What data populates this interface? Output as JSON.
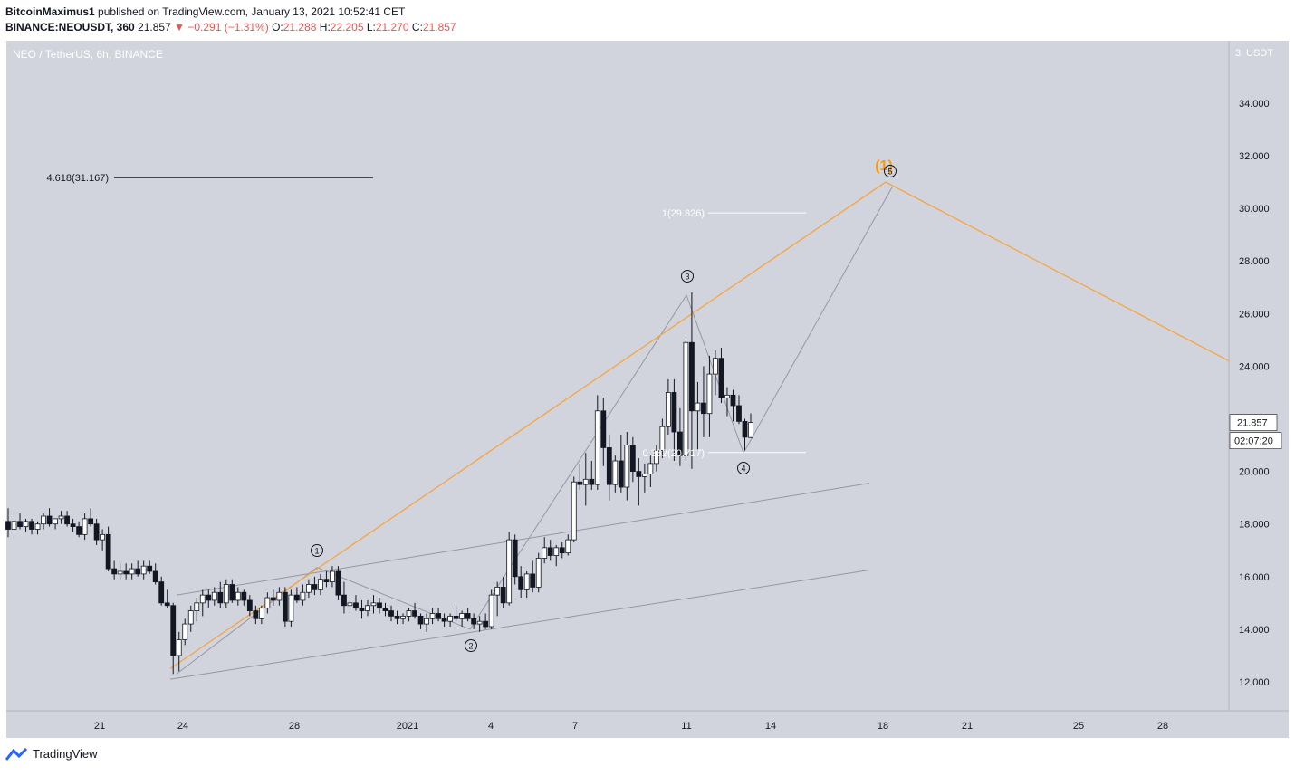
{
  "header": {
    "author": "BitcoinMaximus1",
    "published_text": "published on TradingView.com, January 13, 2021 10:52:41 CET",
    "symbol": "BINANCE:NEOUSDT, 360",
    "last": "21.857",
    "change_arrow": "▼",
    "change": "−0.291 (−1.31%)",
    "o_label": "O:",
    "o_value": "21.288",
    "h_label": "H:",
    "h_value": "22.205",
    "l_label": "L:",
    "l_value": "21.270",
    "c_label": "C:",
    "c_value": "21.857"
  },
  "colors": {
    "chart_bg": "#d1d4dc",
    "wave_orange": "#f7a440",
    "channel_grey": "#9598a1",
    "label_orange": "#ff9800",
    "price_box_bg": "#ffffff",
    "footer_brand": "#2962ff"
  },
  "footer": {
    "brand": "TradingView"
  },
  "chart_data": {
    "type": "candlestick",
    "title": "NEO / TetherUS, 6h, BINANCE",
    "y_unit": "USDT",
    "y_top_label": "3",
    "ylim": [
      11.0,
      35.5
    ],
    "x_labels": [
      "21",
      "24",
      "28",
      "2021",
      "4",
      "7",
      "11",
      "14",
      "18",
      "21",
      "25",
      "28"
    ],
    "y_ticks": [
      "12.000",
      "14.000",
      "16.000",
      "18.000",
      "20.000",
      "22.000",
      "24.000",
      "26.000",
      "28.000",
      "30.000",
      "32.000",
      "34.000"
    ],
    "last_price": "21.857",
    "countdown": "02:07:20",
    "candles": [
      [
        18.1,
        18.6,
        17.5,
        17.8
      ],
      [
        17.8,
        18.3,
        17.6,
        18.1
      ],
      [
        18.1,
        18.4,
        17.8,
        17.9
      ],
      [
        17.9,
        18.2,
        17.7,
        18.1
      ],
      [
        18.1,
        18.2,
        17.6,
        17.8
      ],
      [
        17.8,
        18.1,
        17.6,
        18.0
      ],
      [
        18.0,
        18.4,
        17.8,
        18.3
      ],
      [
        18.3,
        18.6,
        17.9,
        18.0
      ],
      [
        18.0,
        18.2,
        17.8,
        18.2
      ],
      [
        18.2,
        18.5,
        18.0,
        18.3
      ],
      [
        18.3,
        18.5,
        17.9,
        18.0
      ],
      [
        18.0,
        18.2,
        17.7,
        17.9
      ],
      [
        17.9,
        18.1,
        17.5,
        17.6
      ],
      [
        17.6,
        18.4,
        17.4,
        18.2
      ],
      [
        18.2,
        18.6,
        17.9,
        18.0
      ],
      [
        18.0,
        18.2,
        17.2,
        17.4
      ],
      [
        17.4,
        17.8,
        17.0,
        17.6
      ],
      [
        17.6,
        17.9,
        16.2,
        16.3
      ],
      [
        16.3,
        16.6,
        15.9,
        16.1
      ],
      [
        16.1,
        16.5,
        15.9,
        16.2
      ],
      [
        16.2,
        16.5,
        15.9,
        16.1
      ],
      [
        16.1,
        16.5,
        15.9,
        16.3
      ],
      [
        16.3,
        16.6,
        16.0,
        16.1
      ],
      [
        16.1,
        16.6,
        15.9,
        16.4
      ],
      [
        16.4,
        16.6,
        16.1,
        16.2
      ],
      [
        16.2,
        16.5,
        15.7,
        15.8
      ],
      [
        15.8,
        16.0,
        14.9,
        15.0
      ],
      [
        15.0,
        15.5,
        14.8,
        14.9
      ],
      [
        14.9,
        15.0,
        12.3,
        13.0
      ],
      [
        13.0,
        13.9,
        12.4,
        13.6
      ],
      [
        13.6,
        14.4,
        13.4,
        14.2
      ],
      [
        14.2,
        14.9,
        13.9,
        14.7
      ],
      [
        14.7,
        15.2,
        14.3,
        15.0
      ],
      [
        15.0,
        15.5,
        14.5,
        15.3
      ],
      [
        15.3,
        15.5,
        14.8,
        15.1
      ],
      [
        15.1,
        15.6,
        14.9,
        15.4
      ],
      [
        15.4,
        15.8,
        14.8,
        15.0
      ],
      [
        15.0,
        15.9,
        14.8,
        15.7
      ],
      [
        15.7,
        15.9,
        15.0,
        15.1
      ],
      [
        15.1,
        15.6,
        14.9,
        15.4
      ],
      [
        15.4,
        15.5,
        14.9,
        15.1
      ],
      [
        15.1,
        15.3,
        14.5,
        14.7
      ],
      [
        14.7,
        14.9,
        14.2,
        14.4
      ],
      [
        14.4,
        14.9,
        14.2,
        14.8
      ],
      [
        14.8,
        15.4,
        14.6,
        15.2
      ],
      [
        15.2,
        15.5,
        14.9,
        15.1
      ],
      [
        15.1,
        15.6,
        14.9,
        15.4
      ],
      [
        15.4,
        15.6,
        14.1,
        14.3
      ],
      [
        14.3,
        15.5,
        14.1,
        15.3
      ],
      [
        15.3,
        15.6,
        15.0,
        15.1
      ],
      [
        15.1,
        15.7,
        14.9,
        15.4
      ],
      [
        15.4,
        15.9,
        15.2,
        15.7
      ],
      [
        15.7,
        16.0,
        15.3,
        15.5
      ],
      [
        15.5,
        16.1,
        15.3,
        15.9
      ],
      [
        15.9,
        16.2,
        15.6,
        15.8
      ],
      [
        15.8,
        16.4,
        15.6,
        16.2
      ],
      [
        16.2,
        16.4,
        15.1,
        15.3
      ],
      [
        15.3,
        15.8,
        14.6,
        14.9
      ],
      [
        14.9,
        15.2,
        14.6,
        15.0
      ],
      [
        15.0,
        15.3,
        14.7,
        14.8
      ],
      [
        14.8,
        15.1,
        14.4,
        14.7
      ],
      [
        14.7,
        15.1,
        14.5,
        14.9
      ],
      [
        14.9,
        15.3,
        14.6,
        15.0
      ],
      [
        15.0,
        15.2,
        14.6,
        14.8
      ],
      [
        14.8,
        15.0,
        14.5,
        14.7
      ],
      [
        14.7,
        14.9,
        14.3,
        14.5
      ],
      [
        14.5,
        14.7,
        14.2,
        14.4
      ],
      [
        14.4,
        14.6,
        14.2,
        14.5
      ],
      [
        14.5,
        14.8,
        14.3,
        14.7
      ],
      [
        14.7,
        15.0,
        14.4,
        14.5
      ],
      [
        14.5,
        14.6,
        14.0,
        14.2
      ],
      [
        14.2,
        14.6,
        13.9,
        14.4
      ],
      [
        14.4,
        14.8,
        14.2,
        14.6
      ],
      [
        14.6,
        14.8,
        14.3,
        14.4
      ],
      [
        14.4,
        14.6,
        14.1,
        14.3
      ],
      [
        14.3,
        14.6,
        14.1,
        14.5
      ],
      [
        14.5,
        14.9,
        14.3,
        14.4
      ],
      [
        14.4,
        14.7,
        14.1,
        14.6
      ],
      [
        14.6,
        14.8,
        14.3,
        14.4
      ],
      [
        14.4,
        14.6,
        14.0,
        14.2
      ],
      [
        14.2,
        14.5,
        13.9,
        14.3
      ],
      [
        14.3,
        14.6,
        14.0,
        14.1
      ],
      [
        14.1,
        15.5,
        14.0,
        15.3
      ],
      [
        15.3,
        15.8,
        14.5,
        15.6
      ],
      [
        15.6,
        16.0,
        14.8,
        15.0
      ],
      [
        15.0,
        17.7,
        14.9,
        17.4
      ],
      [
        17.4,
        17.6,
        15.7,
        16.0
      ],
      [
        16.0,
        16.4,
        15.2,
        15.5
      ],
      [
        15.5,
        16.2,
        15.2,
        16.1
      ],
      [
        16.1,
        16.6,
        15.4,
        15.6
      ],
      [
        15.6,
        16.9,
        15.4,
        16.7
      ],
      [
        16.7,
        17.5,
        16.5,
        17.1
      ],
      [
        17.1,
        17.4,
        16.6,
        16.8
      ],
      [
        16.8,
        17.2,
        16.4,
        17.1
      ],
      [
        17.1,
        17.3,
        16.7,
        16.9
      ],
      [
        16.9,
        17.6,
        16.8,
        17.4
      ],
      [
        17.4,
        19.8,
        17.3,
        19.6
      ],
      [
        19.6,
        20.3,
        19.3,
        19.5
      ],
      [
        19.5,
        20.7,
        18.7,
        19.7
      ],
      [
        19.7,
        20.4,
        19.3,
        19.5
      ],
      [
        19.5,
        22.9,
        19.3,
        22.3
      ],
      [
        22.3,
        22.8,
        20.2,
        20.9
      ],
      [
        20.9,
        21.4,
        18.9,
        19.5
      ],
      [
        19.5,
        20.6,
        19.2,
        20.4
      ],
      [
        20.4,
        21.4,
        19.2,
        19.4
      ],
      [
        19.4,
        21.5,
        18.9,
        21.0
      ],
      [
        21.0,
        21.3,
        19.6,
        20.0
      ],
      [
        20.0,
        20.5,
        18.7,
        19.8
      ],
      [
        19.8,
        20.3,
        19.2,
        19.9
      ],
      [
        19.9,
        20.6,
        19.4,
        20.3
      ],
      [
        20.3,
        21.0,
        20.0,
        20.8
      ],
      [
        20.8,
        22.0,
        20.5,
        21.7
      ],
      [
        21.7,
        23.5,
        21.4,
        23.0
      ],
      [
        23.0,
        23.5,
        20.4,
        21.5
      ],
      [
        21.5,
        22.4,
        20.2,
        20.6
      ],
      [
        20.6,
        25.0,
        20.4,
        24.9
      ],
      [
        24.9,
        26.8,
        20.1,
        22.3
      ],
      [
        22.3,
        23.4,
        20.8,
        22.6
      ],
      [
        22.6,
        24.0,
        21.3,
        22.2
      ],
      [
        22.2,
        24.4,
        21.3,
        23.7
      ],
      [
        23.7,
        24.6,
        22.9,
        24.3
      ],
      [
        24.3,
        24.7,
        22.6,
        22.8
      ],
      [
        22.8,
        23.2,
        22.1,
        22.9
      ],
      [
        22.9,
        23.1,
        21.9,
        22.5
      ],
      [
        22.5,
        22.9,
        21.8,
        21.9
      ],
      [
        21.9,
        22.0,
        20.8,
        21.3
      ],
      [
        21.288,
        22.205,
        21.27,
        21.857
      ]
    ],
    "annotations": {
      "fib_4618": "4.618(31.167)",
      "fib_1": "1(29.826)",
      "fib_0382": "0.382(20.717)",
      "wave_top_label": "(1)",
      "wave1": "1",
      "wave2": "2",
      "wave3": "3",
      "wave4": "4",
      "wave5": "5"
    }
  }
}
